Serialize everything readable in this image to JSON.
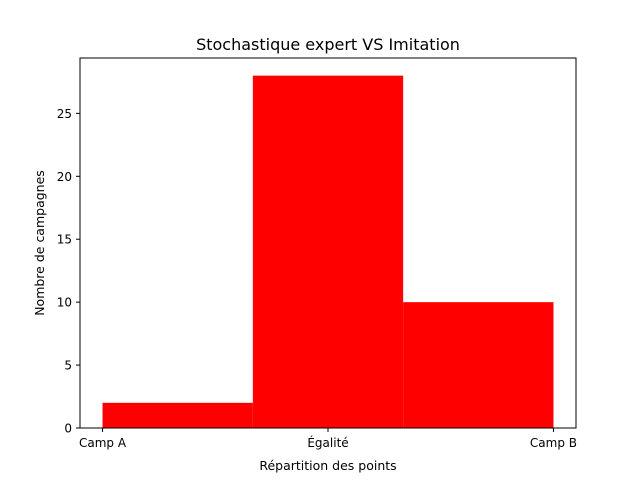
{
  "chart_data": {
    "type": "bar",
    "title": "Stochastique expert VS Imitation",
    "xlabel": "Répartition des points",
    "ylabel": "Nombre de campagnes",
    "x_ticks": [
      {
        "label": "Camp A",
        "value": 0
      },
      {
        "label": "Égalité",
        "value": 1
      },
      {
        "label": "Camp B",
        "value": 2
      }
    ],
    "bins": [
      {
        "start": 0,
        "end": 0.6667,
        "value": 2
      },
      {
        "start": 0.6667,
        "end": 1.3333,
        "value": 28
      },
      {
        "start": 1.3333,
        "end": 2,
        "value": 10
      }
    ],
    "xlim": [
      -0.1,
      2.1
    ],
    "ylim": [
      0,
      29.4
    ],
    "y_ticks": [
      0,
      5,
      10,
      15,
      20,
      25
    ],
    "bar_color": "#ff0000",
    "grid": false,
    "legend": "none"
  }
}
